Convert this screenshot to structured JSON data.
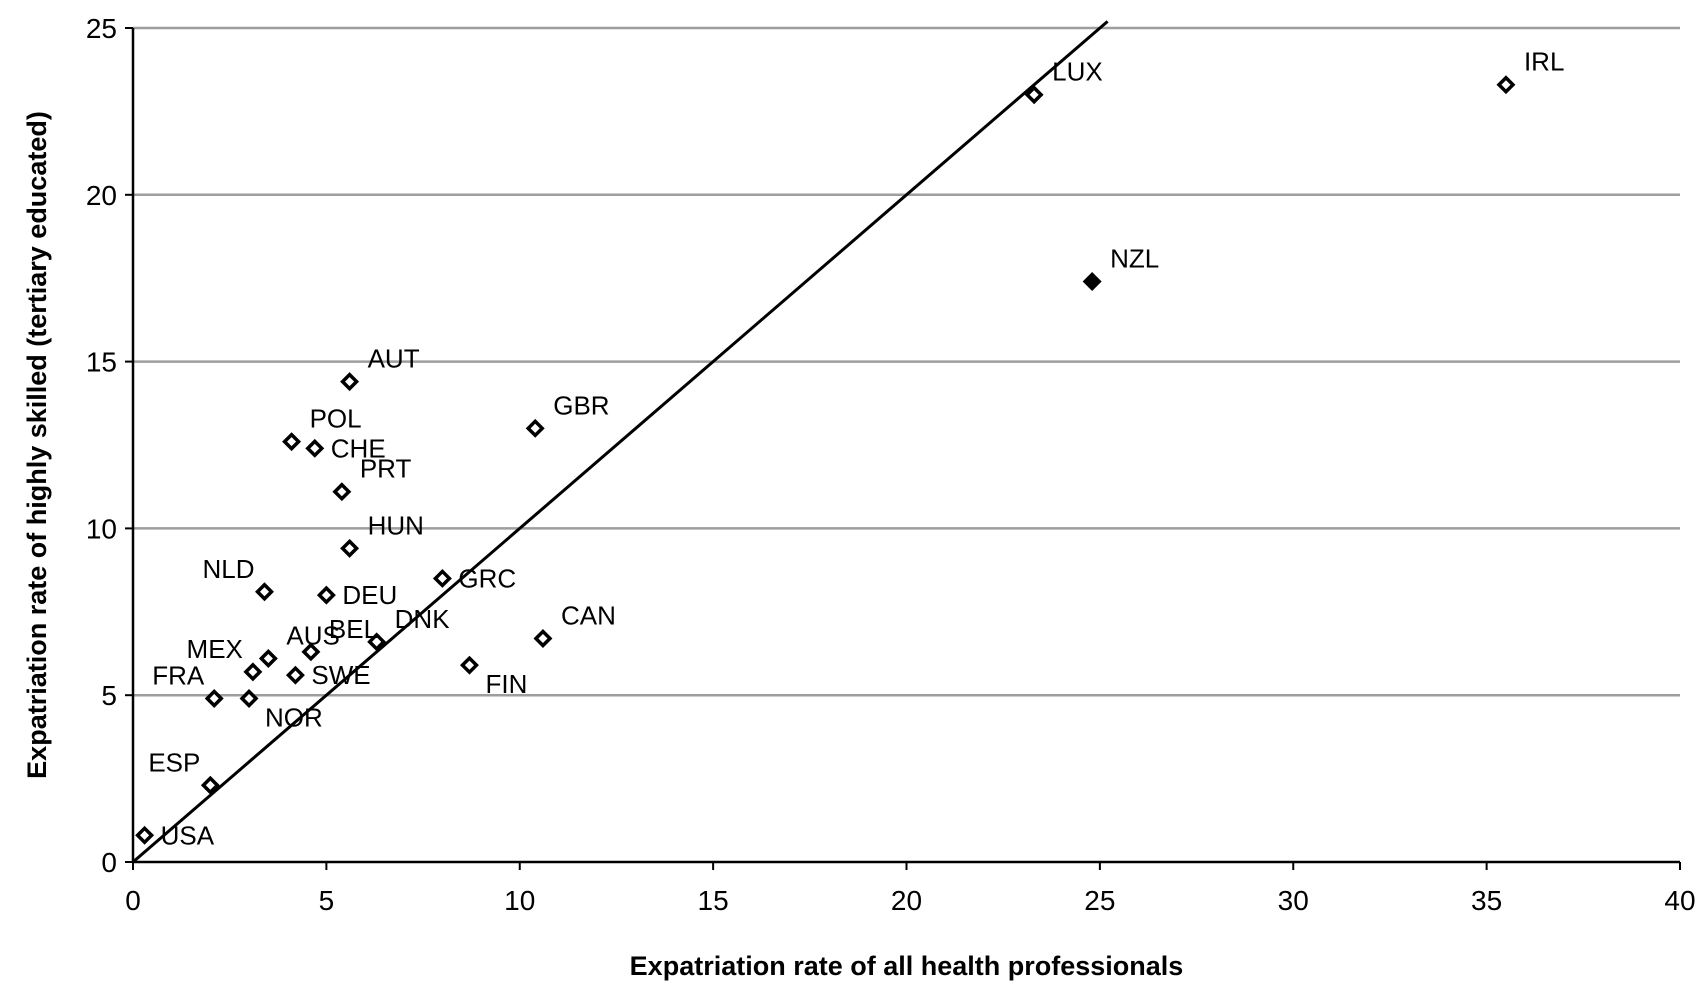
{
  "chart_data": {
    "type": "scatter",
    "xlabel": "Expatriation rate of all health professionals",
    "ylabel": "Expatriation rate of highly skilled (tertiary educated)",
    "xlim": [
      0,
      40
    ],
    "ylim": [
      0,
      25
    ],
    "x_ticks": [
      0,
      5,
      10,
      15,
      20,
      25,
      30,
      35,
      40
    ],
    "y_ticks": [
      0,
      5,
      10,
      15,
      20,
      25
    ],
    "grid": "horizontal",
    "reference_line": {
      "type": "diagonal",
      "x": [
        0,
        25.2
      ],
      "y": [
        0,
        25.2
      ]
    },
    "points": [
      {
        "label": "USA",
        "x": 0.3,
        "y": 0.8,
        "filled": false,
        "label_pos": "right"
      },
      {
        "label": "ESP",
        "x": 2.0,
        "y": 2.3,
        "filled": false,
        "label_pos": "above-left"
      },
      {
        "label": "FRA",
        "x": 2.1,
        "y": 4.9,
        "filled": false,
        "label_pos": "above-left"
      },
      {
        "label": "NOR",
        "x": 3.0,
        "y": 4.9,
        "filled": false,
        "label_pos": "below-right"
      },
      {
        "label": "MEX",
        "x": 3.1,
        "y": 5.7,
        "filled": false,
        "label_pos": "above-left"
      },
      {
        "label": "AUS",
        "x": 3.5,
        "y": 6.1,
        "filled": false,
        "label_pos": "above-right"
      },
      {
        "label": "SWE",
        "x": 4.2,
        "y": 5.6,
        "filled": false,
        "label_pos": "right"
      },
      {
        "label": "BEL",
        "x": 4.6,
        "y": 6.3,
        "filled": false,
        "label_pos": "above-right"
      },
      {
        "label": "DNK",
        "x": 6.3,
        "y": 6.6,
        "filled": false,
        "label_pos": "above-right"
      },
      {
        "label": "NLD",
        "x": 3.4,
        "y": 8.1,
        "filled": false,
        "label_pos": "above-left"
      },
      {
        "label": "DEU",
        "x": 5.0,
        "y": 8.0,
        "filled": false,
        "label_pos": "right"
      },
      {
        "label": "HUN",
        "x": 5.6,
        "y": 9.4,
        "filled": false,
        "label_pos": "above-right"
      },
      {
        "label": "PRT",
        "x": 5.4,
        "y": 11.1,
        "filled": false,
        "label_pos": "above-right"
      },
      {
        "label": "POL",
        "x": 4.1,
        "y": 12.6,
        "filled": false,
        "label_pos": "above-right"
      },
      {
        "label": "CHE",
        "x": 4.7,
        "y": 12.4,
        "filled": false,
        "label_pos": "right"
      },
      {
        "label": "AUT",
        "x": 5.6,
        "y": 14.4,
        "filled": false,
        "label_pos": "above-right"
      },
      {
        "label": "GRC",
        "x": 8.0,
        "y": 8.5,
        "filled": false,
        "label_pos": "right"
      },
      {
        "label": "FIN",
        "x": 8.7,
        "y": 5.9,
        "filled": false,
        "label_pos": "below-right"
      },
      {
        "label": "GBR",
        "x": 10.4,
        "y": 13.0,
        "filled": false,
        "label_pos": "above-right"
      },
      {
        "label": "CAN",
        "x": 10.6,
        "y": 6.7,
        "filled": false,
        "label_pos": "above-right"
      },
      {
        "label": "LUX",
        "x": 23.3,
        "y": 23.0,
        "filled": false,
        "label_pos": "above-right"
      },
      {
        "label": "NZL",
        "x": 24.8,
        "y": 17.4,
        "filled": true,
        "label_pos": "above-right"
      },
      {
        "label": "IRL",
        "x": 35.5,
        "y": 23.3,
        "filled": false,
        "label_pos": "above-right"
      }
    ]
  }
}
